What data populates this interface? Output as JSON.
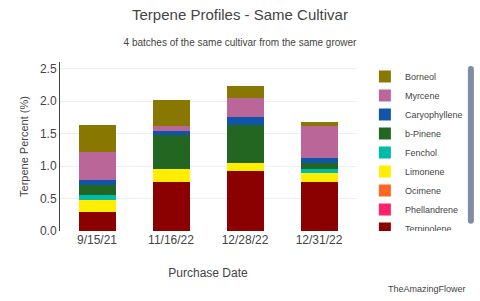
{
  "chart_data": {
    "type": "bar",
    "stacked": true,
    "title": "Terpene Profiles - Same Cultivar",
    "subtitle": "4 batches of the same cultivar from the same grower",
    "x_label": "Purchase Date",
    "y_label": "Terpene Percent (%)",
    "categories": [
      "9/15/21",
      "11/16/22",
      "12/28/22",
      "12/31/22"
    ],
    "series": [
      {
        "name": "Terpinolene",
        "color": "#8B0000",
        "values": [
          0.3,
          0.75,
          0.93,
          0.75
        ]
      },
      {
        "name": "Phellandrene",
        "color": "#FF2266",
        "values": [
          0.0,
          0.0,
          0.0,
          0.0
        ]
      },
      {
        "name": "Ocimene",
        "color": "#FF6622",
        "values": [
          0.0,
          0.0,
          0.0,
          0.0
        ]
      },
      {
        "name": "Limonene",
        "color": "#FFEE00",
        "values": [
          0.18,
          0.2,
          0.12,
          0.15
        ]
      },
      {
        "name": "Fenchol",
        "color": "#00BBAA",
        "values": [
          0.08,
          0.0,
          0.0,
          0.05
        ]
      },
      {
        "name": "b-Pinene",
        "color": "#226622",
        "values": [
          0.15,
          0.52,
          0.58,
          0.1
        ]
      },
      {
        "name": "Caryophyllene",
        "color": "#1155AA",
        "values": [
          0.08,
          0.07,
          0.12,
          0.07
        ]
      },
      {
        "name": "Myrcene",
        "color": "#BB6699",
        "values": [
          0.42,
          0.08,
          0.3,
          0.5
        ]
      },
      {
        "name": "Borneol",
        "color": "#887700",
        "values": [
          0.42,
          0.4,
          0.18,
          0.05
        ]
      }
    ],
    "ylim": [
      0,
      2.6
    ],
    "yticks": [
      {
        "value": 0.0,
        "label": "0.0"
      },
      {
        "value": 0.5,
        "label": "0.5"
      },
      {
        "value": 1.0,
        "label": "1.0"
      },
      {
        "value": 1.5,
        "label": "1.5"
      },
      {
        "value": 2.0,
        "label": "2.0"
      },
      {
        "value": 2.5,
        "label": "2.5"
      }
    ],
    "grid": true,
    "legend": "upper right",
    "annotations": [
      "TheAmazingFlower"
    ]
  }
}
